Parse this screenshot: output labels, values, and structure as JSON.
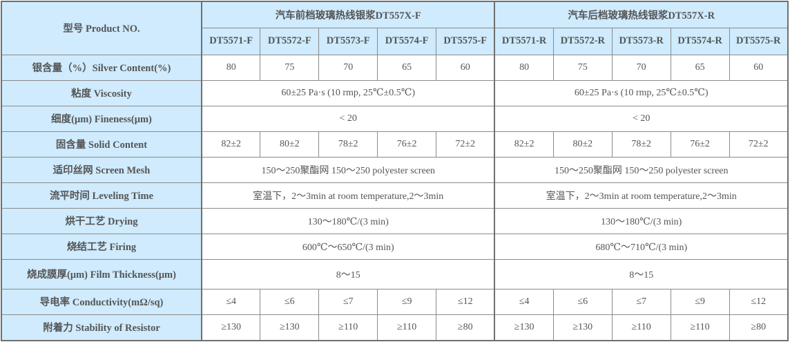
{
  "header": {
    "product_label": "型号 Product NO.",
    "front_title": "汽车前档玻璃热线银浆DT557X-F",
    "rear_title": "汽车后档玻璃热线银浆DT557X-R",
    "models": [
      "DT5571-F",
      "DT5572-F",
      "DT5573-F",
      "DT5574-F",
      "DT5575-F",
      "DT5571-R",
      "DT5572-R",
      "DT5573-R",
      "DT5574-R",
      "DT5575-R"
    ]
  },
  "rows": [
    {
      "label": "银含量（%）Silver Content(%)",
      "values": [
        "80",
        "75",
        "70",
        "65",
        "60",
        "80",
        "75",
        "70",
        "65",
        "60"
      ]
    },
    {
      "label": "粘度 Viscosity",
      "front": "60±25 Pa·s (10 rmp, 25℃±0.5℃)",
      "rear": "60±25 Pa·s (10 rmp, 25℃±0.5℃)"
    },
    {
      "label": "细度(μm) Fineness(μm)",
      "front": "< 20",
      "rear": "< 20"
    },
    {
      "label": "固含量 Solid Content",
      "values": [
        "82±2",
        "80±2",
        "78±2",
        "76±2",
        "72±2",
        "82±2",
        "80±2",
        "78±2",
        "76±2",
        "72±2"
      ]
    },
    {
      "label": "适印丝网 Screen Mesh",
      "front": "150～250聚酯网 150～250 polyester screen",
      "rear": "150～250聚酯网 150～250 polyester screen"
    },
    {
      "label": "流平时间 Leveling Time",
      "front": "室温下，2～3min at room temperature,2～3min",
      "rear": "室温下，2～3min at room temperature,2～3min"
    },
    {
      "label": "烘干工艺 Drying",
      "front": "130～180℃/(3 min)",
      "rear": "130～180℃/(3 min)"
    },
    {
      "label": "烧结工艺 Firing",
      "front": "600℃～650℃/(3 min)",
      "rear": "680℃～710℃/(3 min)"
    },
    {
      "label": "烧成膜厚(μm) Film Thickness(μm)",
      "front": "8～15",
      "rear": "8～15"
    },
    {
      "label": "导电率 Conductivity(mΩ/sq)",
      "values": [
        "≤4",
        "≤6",
        "≤7",
        "≤9",
        "≤12",
        "≤4",
        "≤6",
        "≤7",
        "≤9",
        "≤12"
      ]
    },
    {
      "label": "附着力 Stability of Resistor",
      "values": [
        "≥130",
        "≥130",
        "≥110",
        "≥110",
        "≥80",
        "≥130",
        "≥130",
        "≥110",
        "≥110",
        "≥80"
      ]
    }
  ]
}
